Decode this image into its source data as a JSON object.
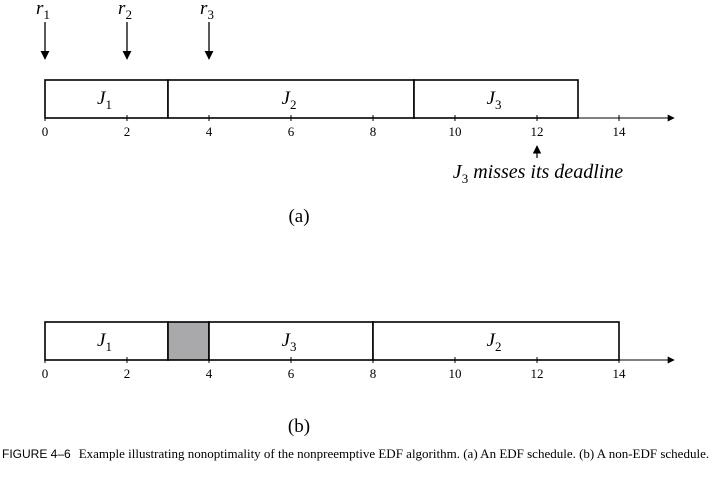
{
  "scale_max": 14,
  "tick_values": [
    0,
    2,
    4,
    6,
    8,
    10,
    12,
    14
  ],
  "release_markers": [
    {
      "label": "r",
      "sub": "1",
      "time": 0
    },
    {
      "label": "r",
      "sub": "2",
      "time": 2
    },
    {
      "label": "r",
      "sub": "3",
      "time": 4
    }
  ],
  "schedule_a": {
    "panel_label": "(a)",
    "blocks": [
      {
        "job": "J",
        "sub": "1",
        "start": 0,
        "end": 3,
        "idle": false
      },
      {
        "job": "J",
        "sub": "2",
        "start": 3,
        "end": 9,
        "idle": false
      },
      {
        "job": "J",
        "sub": "3",
        "start": 9,
        "end": 13,
        "idle": false
      }
    ],
    "annotation": {
      "job": "J",
      "sub": "3",
      "text": " misses its deadline",
      "time": 12
    }
  },
  "schedule_b": {
    "panel_label": "(b)",
    "blocks": [
      {
        "job": "J",
        "sub": "1",
        "start": 0,
        "end": 3,
        "idle": false
      },
      {
        "job": "",
        "sub": "",
        "start": 3,
        "end": 4,
        "idle": true
      },
      {
        "job": "J",
        "sub": "3",
        "start": 4,
        "end": 8,
        "idle": false
      },
      {
        "job": "J",
        "sub": "2",
        "start": 8,
        "end": 14,
        "idle": false
      }
    ]
  },
  "colors": {
    "idle_fill": "#a9a9ab",
    "line": "#000000",
    "block_fill": "#ffffff"
  },
  "caption": {
    "figure_number": "FIGURE 4–6",
    "text": "Example illustrating nonoptimality of the nonpreemptive EDF algorithm. (a) An EDF schedule. (b) A non-EDF schedule."
  }
}
